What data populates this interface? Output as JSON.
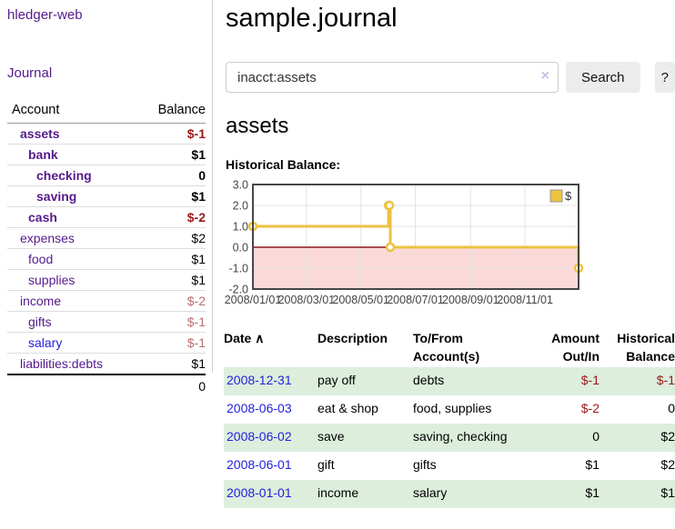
{
  "app": {
    "title": "hledger-web"
  },
  "colors": {
    "link_purple": "#551a8b",
    "link_blue": "#2222dd",
    "negative_strong": "#9d1717",
    "negative_soft": "#b96f6f",
    "row_stripe_green": "#ddeedd",
    "series_gold": "#edc240",
    "negative_region_pink": "#fbd9d9",
    "zero_line_red": "#8b1a1a"
  },
  "sidebar": {
    "journal_label": "Journal",
    "accounts_table": {
      "col_account": "Account",
      "col_balance": "Balance",
      "rows": [
        {
          "name": "assets",
          "level": 1,
          "bold": true,
          "balance": "$-1",
          "neg": "strong"
        },
        {
          "name": "bank",
          "level": 2,
          "bold": true,
          "balance": "$1",
          "neg": "none"
        },
        {
          "name": "checking",
          "level": 3,
          "bold": true,
          "balance": "0",
          "neg": "none"
        },
        {
          "name": "saving",
          "level": 3,
          "bold": true,
          "balance": "$1",
          "neg": "none"
        },
        {
          "name": "cash",
          "level": 2,
          "bold": true,
          "balance": "$-2",
          "neg": "strong"
        },
        {
          "name": "expenses",
          "level": 1,
          "bold": false,
          "balance": "$2",
          "neg": "none"
        },
        {
          "name": "food",
          "level": 2,
          "bold": false,
          "balance": "$1",
          "neg": "none"
        },
        {
          "name": "supplies",
          "level": 2,
          "bold": false,
          "balance": "$1",
          "neg": "none"
        },
        {
          "name": "income",
          "level": 1,
          "bold": false,
          "balance": "$-2",
          "neg": "soft"
        },
        {
          "name": "gifts",
          "level": 2,
          "bold": false,
          "balance": "$-1",
          "neg": "soft"
        },
        {
          "name": "salary",
          "level": 2,
          "bold": false,
          "balance": "$-1",
          "neg": "soft",
          "link": "blue"
        },
        {
          "name": "liabilities:debts",
          "level": 1,
          "bold": false,
          "balance": "$1",
          "neg": "none"
        }
      ],
      "total": "0"
    }
  },
  "main": {
    "page_title": "sample.journal",
    "search": {
      "value": "inacct:assets",
      "clear_icon": "×",
      "button_label": "Search",
      "help_label": "?"
    },
    "account_heading": "assets",
    "chart_label": "Historical Balance:"
  },
  "chart_data": {
    "type": "line",
    "step": true,
    "title": "Historical Balance",
    "legend": {
      "position": "top-right",
      "label": "$"
    },
    "ylim": [
      -2,
      3
    ],
    "y_ticks": [
      {
        "value": 3,
        "label": "3.0"
      },
      {
        "value": 2,
        "label": "2.0"
      },
      {
        "value": 1,
        "label": "1.0"
      },
      {
        "value": 0,
        "label": "0.0"
      },
      {
        "value": -1,
        "label": "-1.0"
      },
      {
        "value": -2,
        "label": "-2.0"
      }
    ],
    "x_range_days": 365,
    "x_ticks": [
      {
        "day": 0,
        "label": "2008/01/01"
      },
      {
        "day": 60,
        "label": "2008/03/01"
      },
      {
        "day": 121,
        "label": "2008/05/01"
      },
      {
        "day": 182,
        "label": "2008/07/01"
      },
      {
        "day": 244,
        "label": "2008/09/01"
      },
      {
        "day": 305,
        "label": "2008/11/01"
      }
    ],
    "series": [
      {
        "name": "$",
        "color": "#edc240",
        "points": [
          {
            "date": "2008-01-01",
            "day": 0,
            "value": 1
          },
          {
            "date": "2008-06-01",
            "day": 152,
            "value": 2
          },
          {
            "date": "2008-06-02",
            "day": 153,
            "value": 2
          },
          {
            "date": "2008-06-03",
            "day": 154,
            "value": 0
          },
          {
            "date": "2008-12-31",
            "day": 365,
            "value": -1
          }
        ]
      }
    ],
    "negative_region_color": "#fbd9d9",
    "zero_line_color": "#8b1a1a",
    "grid": true
  },
  "register_table": {
    "headers": {
      "date": "Date",
      "date_sort_icon": "∧",
      "description": "Description",
      "tofrom_line1": "To/From",
      "tofrom_line2": "Account(s)",
      "amount_line1": "Amount",
      "amount_line2": "Out/In",
      "balance_line1": "Historical",
      "balance_line2": "Balance"
    },
    "rows": [
      {
        "date": "2008-12-31",
        "description": "pay off",
        "accounts": "debts",
        "amount": "$-1",
        "amount_neg": true,
        "balance": "$-1",
        "balance_neg": true
      },
      {
        "date": "2008-06-03",
        "description": "eat & shop",
        "accounts": "food, supplies",
        "amount": "$-2",
        "amount_neg": true,
        "balance": "0",
        "balance_neg": false
      },
      {
        "date": "2008-06-02",
        "description": "save",
        "accounts": "saving, checking",
        "amount": "0",
        "amount_neg": false,
        "balance": "$2",
        "balance_neg": false
      },
      {
        "date": "2008-06-01",
        "description": "gift",
        "accounts": "gifts",
        "amount": "$1",
        "amount_neg": false,
        "balance": "$2",
        "balance_neg": false
      },
      {
        "date": "2008-01-01",
        "description": "income",
        "accounts": "salary",
        "amount": "$1",
        "amount_neg": false,
        "balance": "$1",
        "balance_neg": false
      }
    ]
  }
}
